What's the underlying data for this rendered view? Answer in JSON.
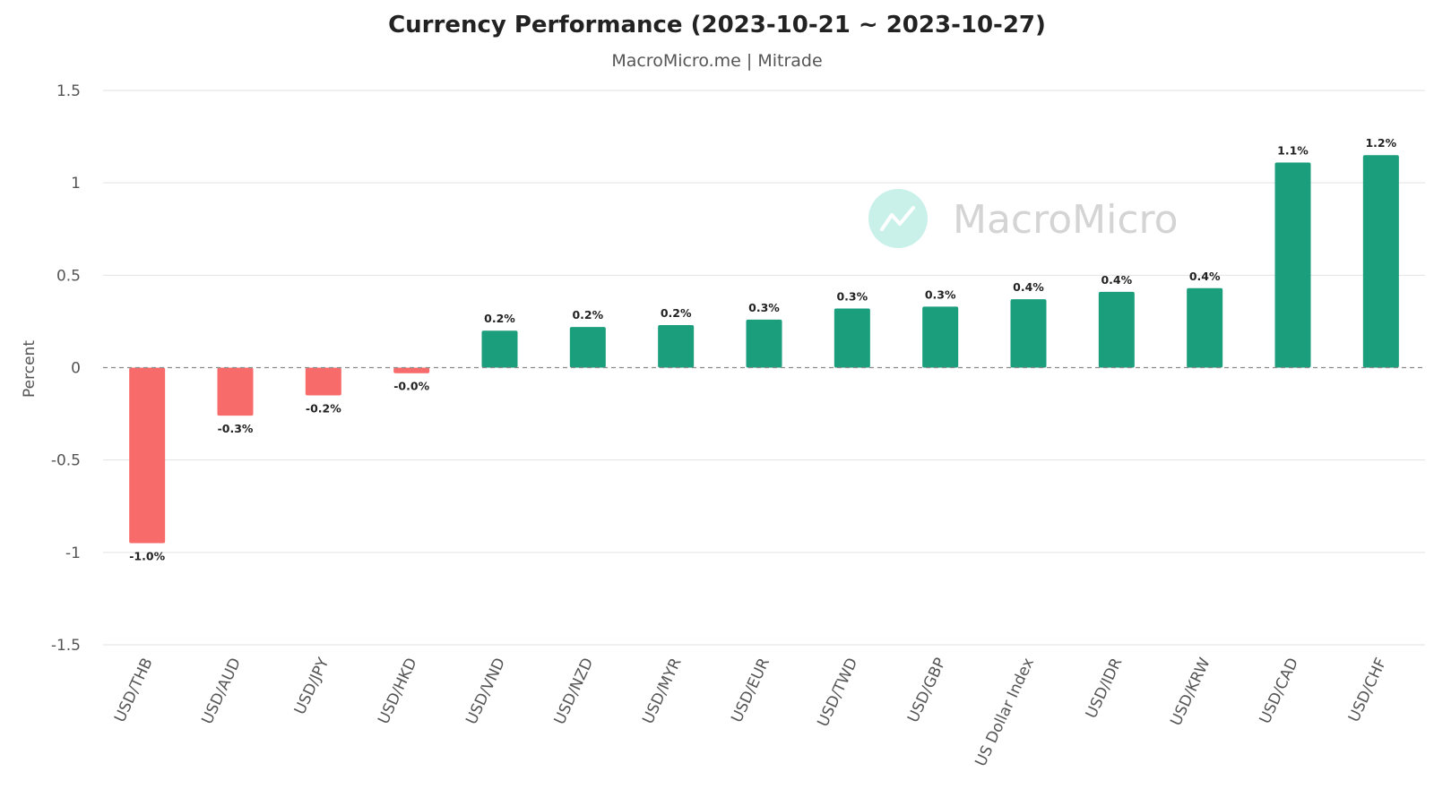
{
  "chart_data": {
    "type": "bar",
    "title": "Currency Performance (2023-10-21 ~ 2023-10-27)",
    "subtitle": "MacroMicro.me | Mitrade",
    "ylabel": "Percent",
    "xlabel": "",
    "ylim": [
      -1.5,
      1.5
    ],
    "yticks": [
      1.5,
      1,
      0.5,
      0,
      -0.5,
      -1,
      -1.5
    ],
    "ytick_labels": [
      "1.5",
      "1",
      "0.5",
      "0",
      "-0.5",
      "-1",
      "-1.5"
    ],
    "grid": true,
    "legend": "none",
    "watermark": "MacroMicro",
    "colors": {
      "positive": "#1a9e7c",
      "negative": "#f76b6b",
      "watermark_icon": "#c9f1ea"
    },
    "categories": [
      "USD/THB",
      "USD/AUD",
      "USD/JPY",
      "USD/HKD",
      "USD/VND",
      "USD/NZD",
      "USD/MYR",
      "USD/EUR",
      "USD/TWD",
      "USD/GBP",
      "US Dollar Index",
      "USD/IDR",
      "USD/KRW",
      "USD/CAD",
      "USD/CHF"
    ],
    "values": [
      -0.95,
      -0.26,
      -0.15,
      -0.03,
      0.2,
      0.22,
      0.23,
      0.26,
      0.32,
      0.33,
      0.37,
      0.41,
      0.43,
      1.11,
      1.15
    ],
    "data_labels": [
      "-1.0%",
      "-0.3%",
      "-0.2%",
      "-0.0%",
      "0.2%",
      "0.2%",
      "0.2%",
      "0.3%",
      "0.3%",
      "0.3%",
      "0.4%",
      "0.4%",
      "0.4%",
      "1.1%",
      "1.2%"
    ]
  }
}
